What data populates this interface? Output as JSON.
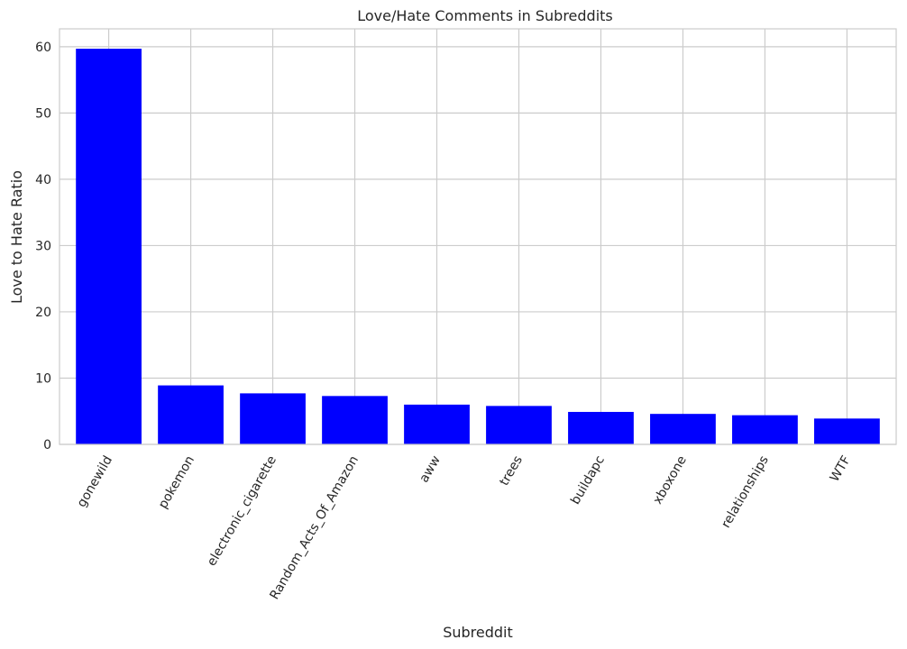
{
  "chart_data": {
    "type": "bar",
    "title": "Love/Hate Comments in Subreddits",
    "xlabel": "Subreddit",
    "ylabel": "Love to Hate Ratio",
    "categories": [
      "gonewild",
      "pokemon",
      "electronic_cigarette",
      "Random_Acts_Of_Amazon",
      "aww",
      "trees",
      "buildapc",
      "xboxone",
      "relationships",
      "WTF"
    ],
    "values": [
      59.7,
      8.9,
      7.7,
      7.3,
      6.0,
      5.8,
      4.9,
      4.6,
      4.4,
      3.9
    ],
    "ylim": [
      0,
      62.7
    ],
    "yticks": [
      0,
      10,
      20,
      30,
      40,
      50,
      60
    ],
    "bar_color": "#0000ff",
    "grid": true,
    "xtick_rotation": -60
  }
}
